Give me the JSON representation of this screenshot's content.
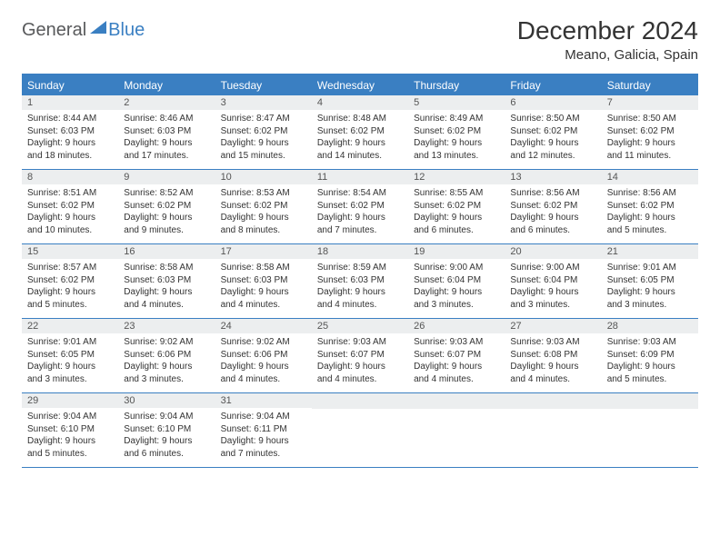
{
  "logo": {
    "text_general": "General",
    "text_blue": "Blue"
  },
  "header": {
    "month_title": "December 2024",
    "location": "Meano, Galicia, Spain"
  },
  "colors": {
    "accent": "#3a7fc2",
    "header_bg": "#3a7fc2",
    "header_text": "#ffffff",
    "daynum_bg": "#eceeef",
    "daynum_text": "#555555",
    "body_text": "#333333",
    "background": "#ffffff",
    "logo_gray": "#58595b"
  },
  "typography": {
    "title_fontsize": 28,
    "location_fontsize": 15,
    "dayhead_fontsize": 12,
    "daynum_fontsize": 11,
    "body_fontsize": 10
  },
  "day_names": [
    "Sunday",
    "Monday",
    "Tuesday",
    "Wednesday",
    "Thursday",
    "Friday",
    "Saturday"
  ],
  "weeks": [
    [
      {
        "n": "1",
        "sunrise": "Sunrise: 8:44 AM",
        "sunset": "Sunset: 6:03 PM",
        "dayl1": "Daylight: 9 hours",
        "dayl2": "and 18 minutes."
      },
      {
        "n": "2",
        "sunrise": "Sunrise: 8:46 AM",
        "sunset": "Sunset: 6:03 PM",
        "dayl1": "Daylight: 9 hours",
        "dayl2": "and 17 minutes."
      },
      {
        "n": "3",
        "sunrise": "Sunrise: 8:47 AM",
        "sunset": "Sunset: 6:02 PM",
        "dayl1": "Daylight: 9 hours",
        "dayl2": "and 15 minutes."
      },
      {
        "n": "4",
        "sunrise": "Sunrise: 8:48 AM",
        "sunset": "Sunset: 6:02 PM",
        "dayl1": "Daylight: 9 hours",
        "dayl2": "and 14 minutes."
      },
      {
        "n": "5",
        "sunrise": "Sunrise: 8:49 AM",
        "sunset": "Sunset: 6:02 PM",
        "dayl1": "Daylight: 9 hours",
        "dayl2": "and 13 minutes."
      },
      {
        "n": "6",
        "sunrise": "Sunrise: 8:50 AM",
        "sunset": "Sunset: 6:02 PM",
        "dayl1": "Daylight: 9 hours",
        "dayl2": "and 12 minutes."
      },
      {
        "n": "7",
        "sunrise": "Sunrise: 8:50 AM",
        "sunset": "Sunset: 6:02 PM",
        "dayl1": "Daylight: 9 hours",
        "dayl2": "and 11 minutes."
      }
    ],
    [
      {
        "n": "8",
        "sunrise": "Sunrise: 8:51 AM",
        "sunset": "Sunset: 6:02 PM",
        "dayl1": "Daylight: 9 hours",
        "dayl2": "and 10 minutes."
      },
      {
        "n": "9",
        "sunrise": "Sunrise: 8:52 AM",
        "sunset": "Sunset: 6:02 PM",
        "dayl1": "Daylight: 9 hours",
        "dayl2": "and 9 minutes."
      },
      {
        "n": "10",
        "sunrise": "Sunrise: 8:53 AM",
        "sunset": "Sunset: 6:02 PM",
        "dayl1": "Daylight: 9 hours",
        "dayl2": "and 8 minutes."
      },
      {
        "n": "11",
        "sunrise": "Sunrise: 8:54 AM",
        "sunset": "Sunset: 6:02 PM",
        "dayl1": "Daylight: 9 hours",
        "dayl2": "and 7 minutes."
      },
      {
        "n": "12",
        "sunrise": "Sunrise: 8:55 AM",
        "sunset": "Sunset: 6:02 PM",
        "dayl1": "Daylight: 9 hours",
        "dayl2": "and 6 minutes."
      },
      {
        "n": "13",
        "sunrise": "Sunrise: 8:56 AM",
        "sunset": "Sunset: 6:02 PM",
        "dayl1": "Daylight: 9 hours",
        "dayl2": "and 6 minutes."
      },
      {
        "n": "14",
        "sunrise": "Sunrise: 8:56 AM",
        "sunset": "Sunset: 6:02 PM",
        "dayl1": "Daylight: 9 hours",
        "dayl2": "and 5 minutes."
      }
    ],
    [
      {
        "n": "15",
        "sunrise": "Sunrise: 8:57 AM",
        "sunset": "Sunset: 6:02 PM",
        "dayl1": "Daylight: 9 hours",
        "dayl2": "and 5 minutes."
      },
      {
        "n": "16",
        "sunrise": "Sunrise: 8:58 AM",
        "sunset": "Sunset: 6:03 PM",
        "dayl1": "Daylight: 9 hours",
        "dayl2": "and 4 minutes."
      },
      {
        "n": "17",
        "sunrise": "Sunrise: 8:58 AM",
        "sunset": "Sunset: 6:03 PM",
        "dayl1": "Daylight: 9 hours",
        "dayl2": "and 4 minutes."
      },
      {
        "n": "18",
        "sunrise": "Sunrise: 8:59 AM",
        "sunset": "Sunset: 6:03 PM",
        "dayl1": "Daylight: 9 hours",
        "dayl2": "and 4 minutes."
      },
      {
        "n": "19",
        "sunrise": "Sunrise: 9:00 AM",
        "sunset": "Sunset: 6:04 PM",
        "dayl1": "Daylight: 9 hours",
        "dayl2": "and 3 minutes."
      },
      {
        "n": "20",
        "sunrise": "Sunrise: 9:00 AM",
        "sunset": "Sunset: 6:04 PM",
        "dayl1": "Daylight: 9 hours",
        "dayl2": "and 3 minutes."
      },
      {
        "n": "21",
        "sunrise": "Sunrise: 9:01 AM",
        "sunset": "Sunset: 6:05 PM",
        "dayl1": "Daylight: 9 hours",
        "dayl2": "and 3 minutes."
      }
    ],
    [
      {
        "n": "22",
        "sunrise": "Sunrise: 9:01 AM",
        "sunset": "Sunset: 6:05 PM",
        "dayl1": "Daylight: 9 hours",
        "dayl2": "and 3 minutes."
      },
      {
        "n": "23",
        "sunrise": "Sunrise: 9:02 AM",
        "sunset": "Sunset: 6:06 PM",
        "dayl1": "Daylight: 9 hours",
        "dayl2": "and 3 minutes."
      },
      {
        "n": "24",
        "sunrise": "Sunrise: 9:02 AM",
        "sunset": "Sunset: 6:06 PM",
        "dayl1": "Daylight: 9 hours",
        "dayl2": "and 4 minutes."
      },
      {
        "n": "25",
        "sunrise": "Sunrise: 9:03 AM",
        "sunset": "Sunset: 6:07 PM",
        "dayl1": "Daylight: 9 hours",
        "dayl2": "and 4 minutes."
      },
      {
        "n": "26",
        "sunrise": "Sunrise: 9:03 AM",
        "sunset": "Sunset: 6:07 PM",
        "dayl1": "Daylight: 9 hours",
        "dayl2": "and 4 minutes."
      },
      {
        "n": "27",
        "sunrise": "Sunrise: 9:03 AM",
        "sunset": "Sunset: 6:08 PM",
        "dayl1": "Daylight: 9 hours",
        "dayl2": "and 4 minutes."
      },
      {
        "n": "28",
        "sunrise": "Sunrise: 9:03 AM",
        "sunset": "Sunset: 6:09 PM",
        "dayl1": "Daylight: 9 hours",
        "dayl2": "and 5 minutes."
      }
    ],
    [
      {
        "n": "29",
        "sunrise": "Sunrise: 9:04 AM",
        "sunset": "Sunset: 6:10 PM",
        "dayl1": "Daylight: 9 hours",
        "dayl2": "and 5 minutes."
      },
      {
        "n": "30",
        "sunrise": "Sunrise: 9:04 AM",
        "sunset": "Sunset: 6:10 PM",
        "dayl1": "Daylight: 9 hours",
        "dayl2": "and 6 minutes."
      },
      {
        "n": "31",
        "sunrise": "Sunrise: 9:04 AM",
        "sunset": "Sunset: 6:11 PM",
        "dayl1": "Daylight: 9 hours",
        "dayl2": "and 7 minutes."
      },
      {
        "empty": true
      },
      {
        "empty": true
      },
      {
        "empty": true
      },
      {
        "empty": true
      }
    ]
  ]
}
